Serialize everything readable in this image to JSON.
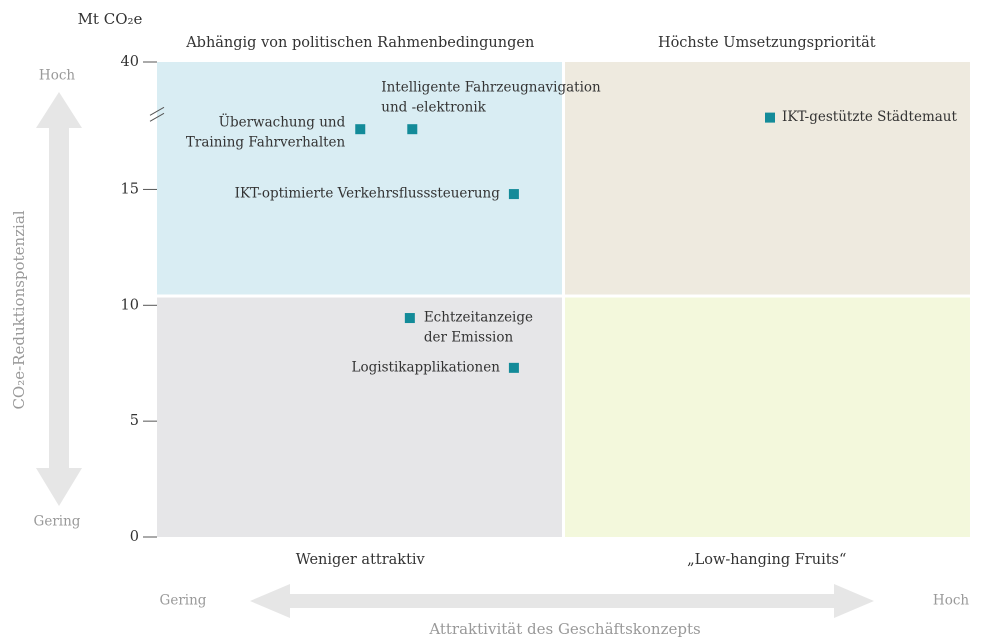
{
  "chart_data": {
    "type": "scatter",
    "y_unit_label": "Mt CO₂e",
    "ylabel": "CO₂e-Reduktionspotenzial",
    "xlabel": "Attraktivität des Geschäftskonzepts",
    "y_low": "Gering",
    "y_high": "Hoch",
    "x_low": "Gering",
    "x_high": "Hoch",
    "quadrants": [
      {
        "label": "Abhängig von politischen Rahmenbedingungen",
        "color": "#d9edf3"
      },
      {
        "label": "Höchste Umsetzungspriorität",
        "color": "#eeeadf"
      },
      {
        "label": "Weniger attraktiv",
        "color": "#e6e6e8"
      },
      {
        "label": "„Low-hanging Fruits“",
        "color": "#f3f8dc"
      }
    ],
    "xsplit": 50,
    "ysplit": 10.4,
    "xlim": [
      0,
      100
    ],
    "ylim": [
      0,
      40
    ],
    "ybreak": [
      18.2,
      37.7
    ],
    "yticks": [
      0,
      5,
      10,
      15,
      40
    ],
    "color": "#138b99",
    "points": [
      {
        "label": [
          "Überwachung und",
          "Training Fahrverhalten"
        ],
        "x": 25,
        "y": 17.6
      },
      {
        "label": [
          "Intelligente Fahrzeugnavigation",
          "und -elektronik"
        ],
        "x": 31.4,
        "y": 17.6
      },
      {
        "label": [
          "IKT-optimierte Verkehrsflusssteuerung"
        ],
        "x": 43.9,
        "y": 14.8
      },
      {
        "label": [
          "IKT-gestützte Städtemaut"
        ],
        "x": 75.4,
        "y": 18.1
      },
      {
        "label": [
          "Echtzeitanzeige",
          "der Emission"
        ],
        "x": 31.1,
        "y": 9.45
      },
      {
        "label": [
          "Logistikapplikationen"
        ],
        "x": 43.9,
        "y": 7.3
      }
    ]
  }
}
